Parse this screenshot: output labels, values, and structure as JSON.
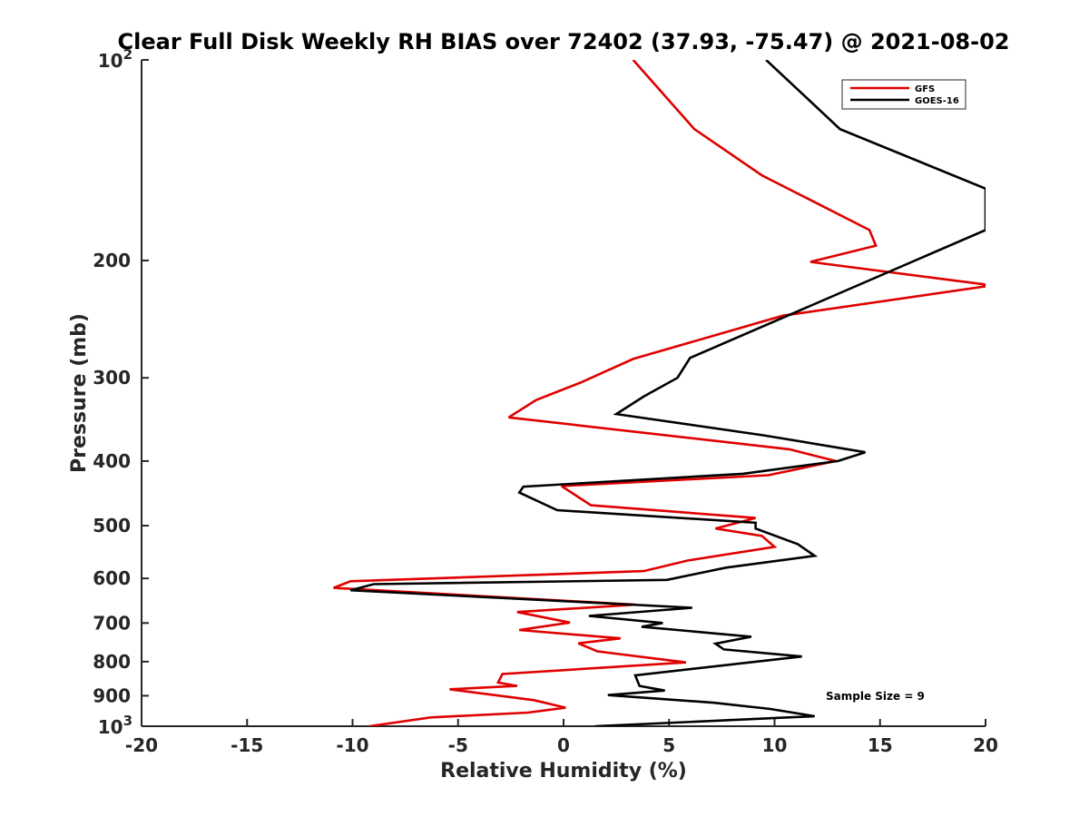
{
  "chart_data": {
    "type": "line",
    "title": "Clear Full Disk Weekly RH BIAS over 72402 (37.93, -75.47) @ 2021-08-02",
    "xlabel": "Relative Humidity (%)",
    "ylabel": "Pressure (mb)",
    "xlim": [
      -20,
      20
    ],
    "ylim": [
      100,
      1000
    ],
    "yscale": "log",
    "y_reversed": true,
    "grid": false,
    "legend_position": "top-right",
    "x_ticks": [
      {
        "value": -20,
        "label": "-20"
      },
      {
        "value": -15,
        "label": "-15"
      },
      {
        "value": -10,
        "label": "-10"
      },
      {
        "value": -5,
        "label": "-5"
      },
      {
        "value": 0,
        "label": "0"
      },
      {
        "value": 5,
        "label": "5"
      },
      {
        "value": 10,
        "label": "10"
      },
      {
        "value": 15,
        "label": "15"
      },
      {
        "value": 20,
        "label": "20"
      }
    ],
    "y_ticks": [
      {
        "value": 100,
        "base": "10",
        "exp": "2"
      },
      {
        "value": 200,
        "label": "200"
      },
      {
        "value": 300,
        "label": "300"
      },
      {
        "value": 400,
        "label": "400"
      },
      {
        "value": 500,
        "label": "500"
      },
      {
        "value": 600,
        "label": "600"
      },
      {
        "value": 700,
        "label": "700"
      },
      {
        "value": 800,
        "label": "800"
      },
      {
        "value": 900,
        "label": "900"
      },
      {
        "value": 1000,
        "base": "10",
        "exp": "3"
      }
    ],
    "annotation": "Sample Size = 9",
    "series": [
      {
        "name": "GFS",
        "color": "#e00000",
        "x": [
          3.3,
          6.2,
          9.4,
          14.5,
          14.8,
          11.7,
          20.3,
          10.4,
          3.3,
          0.8,
          -1.3,
          -2.6,
          10.7,
          12.9,
          9.7,
          -0.1,
          1.3,
          9.1,
          7.2,
          9.4,
          10.0,
          5.9,
          3.8,
          -10.1,
          -10.9,
          3.4,
          -2.2,
          0.3,
          -2.1,
          2.7,
          0.7,
          1.6,
          5.8,
          -2.9,
          -3.1,
          -2.2,
          -5.4,
          -1.4,
          0.1,
          -1.7,
          -6.3,
          -9.2
        ],
        "y": [
          100,
          127,
          149,
          180,
          190,
          201,
          218,
          242,
          281,
          305,
          324,
          344,
          384,
          400,
          420,
          436,
          466,
          487,
          505,
          518,
          538,
          564,
          585,
          606,
          620,
          657,
          674,
          699,
          717,
          738,
          751,
          772,
          802,
          835,
          860,
          870,
          880,
          914,
          938,
          954,
          970,
          1000
        ]
      },
      {
        "name": "GOES-16",
        "color": "#000000",
        "x": [
          9.6,
          13.1,
          20.0,
          20.0,
          6.0,
          5.4,
          3.8,
          2.5,
          9.5,
          14.3,
          13.0,
          8.5,
          -1.9,
          -2.1,
          -0.3,
          9.1,
          9.1,
          11.1,
          11.9,
          7.7,
          4.9,
          -9.0,
          -10.1,
          6.1,
          1.2,
          4.7,
          3.7,
          8.9,
          7.2,
          7.6,
          11.3,
          3.4,
          3.6,
          4.8,
          2.1,
          7.1,
          9.8,
          11.9,
          1.5
        ],
        "y": [
          100,
          127,
          156,
          180,
          280,
          300,
          320,
          340,
          366,
          388,
          400,
          418,
          437,
          446,
          474,
          495,
          505,
          533,
          555,
          578,
          603,
          612,
          625,
          664,
          683,
          700,
          709,
          734,
          752,
          767,
          786,
          839,
          870,
          884,
          898,
          922,
          942,
          966,
          1000
        ]
      }
    ]
  }
}
